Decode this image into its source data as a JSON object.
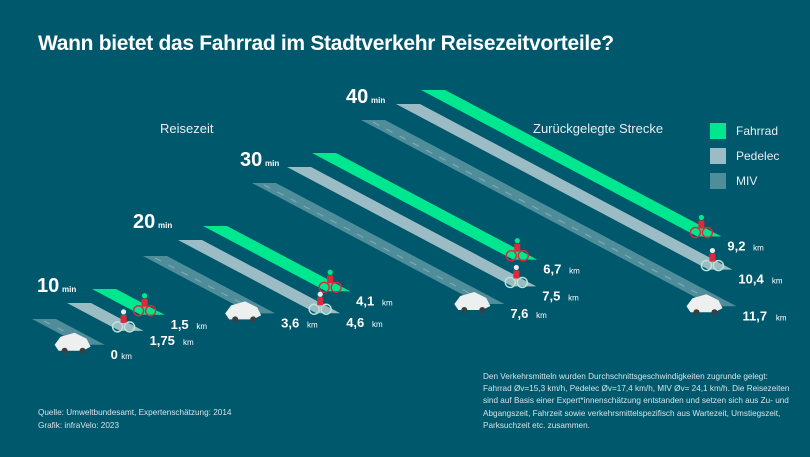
{
  "title": "Wann bietet das Fahrrad im Stadtverkehr Reisezeitvorteile?",
  "labels": {
    "travel_time": "Reisezeit",
    "distance": "Zurückgelegte Strecke"
  },
  "legend": [
    {
      "label": "Fahrrad",
      "color": "#00e88f"
    },
    {
      "label": "Pedelec",
      "color": "#9bbcc4"
    },
    {
      "label": "MIV",
      "color": "#4e8d99"
    }
  ],
  "note": "Den Verkehrsmitteln wurden Durchschnittsgeschwindigkeiten zugrunde gelegt: Fahrrad Øv=15,3 km/h, Pedelec  Øv=17,4 km/h, MIV Øv= 24,1 km/h. Die Reisezeiten sind auf Basis einer Expert*innenschätzung entstanden und setzen sich aus Zu- und Abgangszeit, Fahrzeit sowie verkehrsmittelspezifisch aus Wartezeit, Umstiegszeit, Parksuchzeit etc. zusammen.",
  "source": {
    "line1": "Quelle: Umweltbundesamt, Expertenschätzung: 2014",
    "line2": "Grafik: infraVelo: 2023"
  },
  "chart_data": {
    "type": "bar",
    "title": "Wann bietet das Fahrrad im Stadtverkehr Reisezeitvorteile?",
    "xlabel": "Reisezeit",
    "ylabel": "Zurückgelegte Strecke",
    "time_unit": "min",
    "distance_unit": "km",
    "categories": [
      "10",
      "20",
      "30",
      "40"
    ],
    "series": [
      {
        "name": "Fahrrad",
        "values": [
          1.5,
          4.1,
          6.7,
          9.2
        ],
        "labels": [
          "1,5",
          "4,1",
          "6,7",
          "9,2"
        ]
      },
      {
        "name": "Pedelec",
        "values": [
          1.75,
          4.6,
          7.5,
          10.4
        ],
        "labels": [
          "1,75",
          "4,6",
          "7,5",
          "10,4"
        ]
      },
      {
        "name": "MIV",
        "values": [
          0,
          3.6,
          7.6,
          11.7
        ],
        "labels": [
          "0",
          "3,6",
          "7,6",
          "11,7"
        ]
      }
    ],
    "legend_position": "top-right"
  }
}
